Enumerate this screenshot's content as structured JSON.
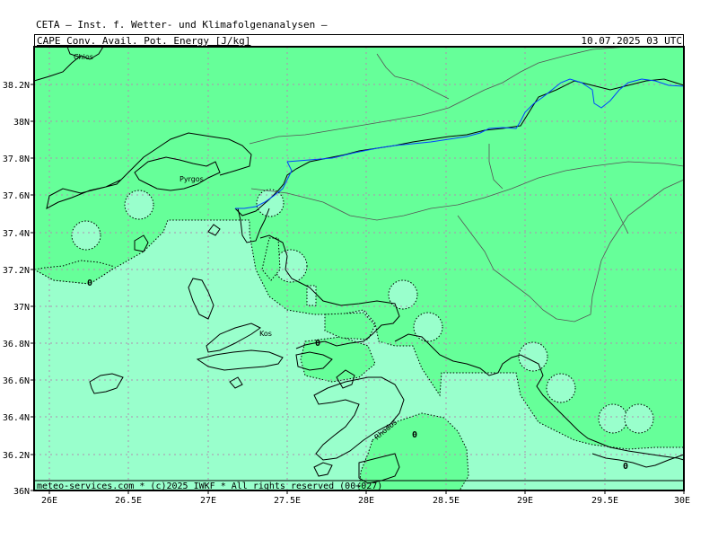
{
  "header": {
    "institute": "CETA – Inst. f. Wetter- und Klimafolgenanalysen –",
    "variable": "CAPE_Conv._Avail._Pot._Energy_[J/kg]",
    "datetime": "10.07.2025 03 UTC"
  },
  "footer": {
    "credit": "meteo-services.com * (c)2025 IWKF * All rights reserved (00+027)"
  },
  "axes": {
    "lat_labels": [
      "38.2N",
      "38N",
      "37.8N",
      "37.6N",
      "37.4N",
      "37.2N",
      "37N",
      "36.8N",
      "36.6N",
      "36.4N",
      "36.2N",
      "36N"
    ],
    "lon_labels": [
      "26E",
      "26.5E",
      "27E",
      "27.5E",
      "28E",
      "28.5E",
      "29E",
      "29.5E",
      "30E"
    ]
  },
  "places": [
    "Chios",
    "Pyrgos",
    "Kos",
    "Rhodos"
  ],
  "contour_labels": [
    "0",
    "0",
    "0",
    "0"
  ],
  "colors": {
    "cape_zero": "#66ff99",
    "cape_low": "#99ffcc",
    "grid": "#b08fb0",
    "river": "#0044ff"
  }
}
